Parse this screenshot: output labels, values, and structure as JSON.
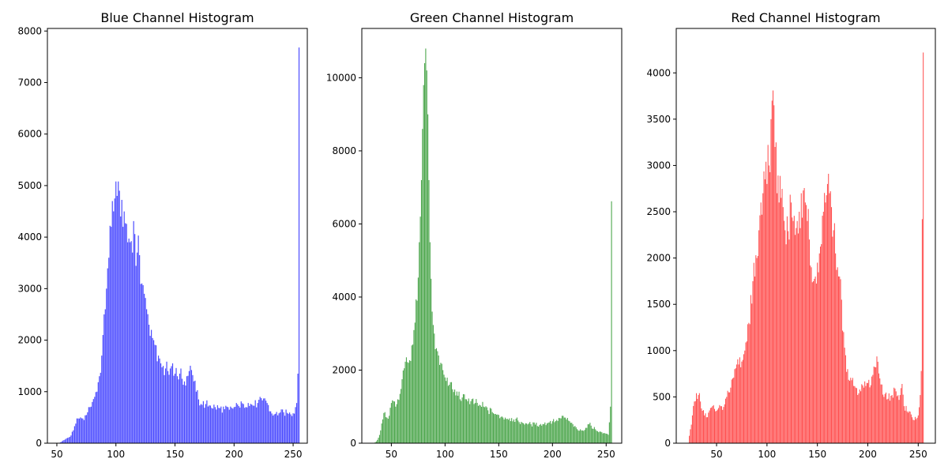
{
  "chart_data": [
    {
      "type": "bar",
      "title": "Blue Channel Histogram",
      "xlabel": "",
      "ylabel": "",
      "color": "#0000ff",
      "opacity": 0.7,
      "xlim": [
        42,
        262
      ],
      "ylim": [
        0,
        8050
      ],
      "x_ticks": [
        50,
        100,
        150,
        200,
        250
      ],
      "y_ticks": [
        0,
        1000,
        2000,
        3000,
        4000,
        5000,
        6000,
        7000,
        8000
      ],
      "grid": false,
      "key_points": [
        [
          52,
          0
        ],
        [
          54,
          30
        ],
        [
          56,
          60
        ],
        [
          58,
          90
        ],
        [
          60,
          110
        ],
        [
          62,
          150
        ],
        [
          64,
          250
        ],
        [
          66,
          380
        ],
        [
          68,
          480
        ],
        [
          70,
          500
        ],
        [
          72,
          480
        ],
        [
          74,
          540
        ],
        [
          76,
          600
        ],
        [
          78,
          700
        ],
        [
          80,
          800
        ],
        [
          82,
          900
        ],
        [
          84,
          1000
        ],
        [
          86,
          1300
        ],
        [
          88,
          1700
        ],
        [
          89,
          2100
        ],
        [
          90,
          2500
        ],
        [
          92,
          3000
        ],
        [
          94,
          3600
        ],
        [
          96,
          4200
        ],
        [
          97,
          4700
        ],
        [
          98,
          4500
        ],
        [
          99,
          4750
        ],
        [
          100,
          5080
        ],
        [
          101,
          4800
        ],
        [
          102,
          5080
        ],
        [
          103,
          4900
        ],
        [
          104,
          4400
        ],
        [
          106,
          4200
        ],
        [
          108,
          4270
        ],
        [
          110,
          3900
        ],
        [
          112,
          3900
        ],
        [
          114,
          3700
        ],
        [
          116,
          4060
        ],
        [
          118,
          3700
        ],
        [
          120,
          3650
        ],
        [
          122,
          3100
        ],
        [
          124,
          2900
        ],
        [
          126,
          2600
        ],
        [
          128,
          2300
        ],
        [
          130,
          2200
        ],
        [
          132,
          2000
        ],
        [
          134,
          1900
        ],
        [
          136,
          1700
        ],
        [
          138,
          1550
        ],
        [
          140,
          1500
        ],
        [
          142,
          1450
        ],
        [
          144,
          1400
        ],
        [
          146,
          1450
        ],
        [
          148,
          1550
        ],
        [
          150,
          1350
        ],
        [
          152,
          1300
        ],
        [
          154,
          1350
        ],
        [
          156,
          1250
        ],
        [
          158,
          1200
        ],
        [
          160,
          1300
        ],
        [
          162,
          1400
        ],
        [
          164,
          1420
        ],
        [
          166,
          1200
        ],
        [
          168,
          1000
        ],
        [
          170,
          850
        ],
        [
          172,
          760
        ],
        [
          176,
          760
        ],
        [
          180,
          730
        ],
        [
          184,
          700
        ],
        [
          188,
          680
        ],
        [
          192,
          660
        ],
        [
          196,
          650
        ],
        [
          200,
          700
        ],
        [
          204,
          720
        ],
        [
          208,
          760
        ],
        [
          212,
          780
        ],
        [
          216,
          730
        ],
        [
          220,
          780
        ],
        [
          224,
          830
        ],
        [
          226,
          870
        ],
        [
          228,
          780
        ],
        [
          230,
          620
        ],
        [
          234,
          560
        ],
        [
          238,
          580
        ],
        [
          242,
          600
        ],
        [
          246,
          570
        ],
        [
          248,
          560
        ],
        [
          250,
          580
        ],
        [
          252,
          700
        ],
        [
          253,
          780
        ],
        [
          254,
          1350
        ],
        [
          255,
          7680
        ]
      ]
    },
    {
      "type": "bar",
      "title": "Green Channel Histogram",
      "xlabel": "",
      "ylabel": "",
      "color": "#008000",
      "opacity": 0.7,
      "xlim": [
        22.5,
        264.5
      ],
      "ylim": [
        0,
        11350
      ],
      "x_ticks": [
        50,
        100,
        150,
        200,
        250
      ],
      "y_ticks": [
        0,
        2000,
        4000,
        6000,
        8000,
        10000
      ],
      "grid": false,
      "key_points": [
        [
          34,
          0
        ],
        [
          36,
          50
        ],
        [
          38,
          150
        ],
        [
          40,
          350
        ],
        [
          42,
          650
        ],
        [
          44,
          850
        ],
        [
          46,
          700
        ],
        [
          48,
          750
        ],
        [
          50,
          1100
        ],
        [
          52,
          1150
        ],
        [
          54,
          1000
        ],
        [
          56,
          1200
        ],
        [
          58,
          1350
        ],
        [
          60,
          1750
        ],
        [
          62,
          2050
        ],
        [
          64,
          2350
        ],
        [
          66,
          2200
        ],
        [
          68,
          2250
        ],
        [
          70,
          2700
        ],
        [
          72,
          3300
        ],
        [
          74,
          3900
        ],
        [
          76,
          5500
        ],
        [
          77,
          6200
        ],
        [
          78,
          7200
        ],
        [
          79,
          8600
        ],
        [
          80,
          9800
        ],
        [
          81,
          10400
        ],
        [
          82,
          10800
        ],
        [
          83,
          10200
        ],
        [
          84,
          9000
        ],
        [
          85,
          7200
        ],
        [
          86,
          5500
        ],
        [
          87,
          4500
        ],
        [
          88,
          3600
        ],
        [
          90,
          3000
        ],
        [
          92,
          2600
        ],
        [
          94,
          2400
        ],
        [
          96,
          2200
        ],
        [
          98,
          2000
        ],
        [
          100,
          1800
        ],
        [
          104,
          1600
        ],
        [
          108,
          1400
        ],
        [
          112,
          1300
        ],
        [
          116,
          1250
        ],
        [
          120,
          1200
        ],
        [
          124,
          1150
        ],
        [
          128,
          1100
        ],
        [
          132,
          1050
        ],
        [
          136,
          1000
        ],
        [
          140,
          900
        ],
        [
          144,
          850
        ],
        [
          148,
          780
        ],
        [
          152,
          720
        ],
        [
          156,
          700
        ],
        [
          160,
          680
        ],
        [
          164,
          650
        ],
        [
          168,
          620
        ],
        [
          172,
          560
        ],
        [
          176,
          540
        ],
        [
          180,
          520
        ],
        [
          184,
          510
        ],
        [
          188,
          500
        ],
        [
          192,
          520
        ],
        [
          196,
          560
        ],
        [
          200,
          600
        ],
        [
          204,
          640
        ],
        [
          208,
          680
        ],
        [
          212,
          700
        ],
        [
          216,
          600
        ],
        [
          220,
          450
        ],
        [
          224,
          350
        ],
        [
          228,
          350
        ],
        [
          232,
          420
        ],
        [
          234,
          520
        ],
        [
          236,
          480
        ],
        [
          240,
          380
        ],
        [
          244,
          320
        ],
        [
          248,
          280
        ],
        [
          252,
          230
        ],
        [
          254,
          1000
        ],
        [
          255,
          6620
        ]
      ]
    },
    {
      "type": "bar",
      "title": "Red Channel Histogram",
      "xlabel": "",
      "ylabel": "",
      "color": "#ff0000",
      "opacity": 0.7,
      "xlim": [
        10,
        267
      ],
      "ylim": [
        0,
        4480
      ],
      "x_ticks": [
        50,
        100,
        150,
        200,
        250
      ],
      "y_ticks": [
        0,
        500,
        1000,
        1500,
        2000,
        2500,
        3000,
        3500,
        4000
      ],
      "grid": false,
      "key_points": [
        [
          22,
          0
        ],
        [
          23,
          80
        ],
        [
          24,
          150
        ],
        [
          26,
          300
        ],
        [
          28,
          450
        ],
        [
          30,
          540
        ],
        [
          32,
          520
        ],
        [
          34,
          450
        ],
        [
          36,
          350
        ],
        [
          38,
          300
        ],
        [
          40,
          280
        ],
        [
          42,
          330
        ],
        [
          44,
          380
        ],
        [
          46,
          400
        ],
        [
          48,
          370
        ],
        [
          50,
          350
        ],
        [
          52,
          380
        ],
        [
          54,
          400
        ],
        [
          56,
          360
        ],
        [
          58,
          420
        ],
        [
          60,
          500
        ],
        [
          62,
          550
        ],
        [
          64,
          600
        ],
        [
          66,
          700
        ],
        [
          68,
          800
        ],
        [
          70,
          850
        ],
        [
          72,
          850
        ],
        [
          74,
          820
        ],
        [
          76,
          900
        ],
        [
          78,
          1000
        ],
        [
          80,
          1100
        ],
        [
          82,
          1300
        ],
        [
          84,
          1600
        ],
        [
          86,
          1750
        ],
        [
          88,
          1800
        ],
        [
          90,
          2000
        ],
        [
          92,
          2300
        ],
        [
          94,
          2600
        ],
        [
          96,
          2700
        ],
        [
          98,
          2850
        ],
        [
          100,
          2800
        ],
        [
          102,
          3000
        ],
        [
          104,
          3500
        ],
        [
          105,
          3700
        ],
        [
          106,
          3810
        ],
        [
          107,
          3650
        ],
        [
          108,
          3200
        ],
        [
          110,
          2700
        ],
        [
          112,
          2600
        ],
        [
          114,
          2650
        ],
        [
          116,
          2550
        ],
        [
          118,
          2300
        ],
        [
          120,
          2450
        ],
        [
          122,
          2200
        ],
        [
          124,
          2600
        ],
        [
          126,
          2400
        ],
        [
          128,
          2250
        ],
        [
          130,
          2400
        ],
        [
          132,
          2500
        ],
        [
          134,
          2700
        ],
        [
          136,
          2730
        ],
        [
          138,
          2600
        ],
        [
          140,
          2400
        ],
        [
          142,
          2200
        ],
        [
          144,
          1900
        ],
        [
          146,
          1750
        ],
        [
          148,
          1800
        ],
        [
          150,
          1950
        ],
        [
          152,
          2050
        ],
        [
          154,
          2150
        ],
        [
          156,
          2500
        ],
        [
          158,
          2600
        ],
        [
          160,
          2800
        ],
        [
          162,
          2700
        ],
        [
          164,
          2550
        ],
        [
          166,
          2300
        ],
        [
          168,
          2050
        ],
        [
          170,
          1900
        ],
        [
          172,
          1800
        ],
        [
          174,
          1550
        ],
        [
          176,
          1200
        ],
        [
          178,
          950
        ],
        [
          180,
          800
        ],
        [
          184,
          680
        ],
        [
          188,
          600
        ],
        [
          192,
          580
        ],
        [
          196,
          600
        ],
        [
          200,
          650
        ],
        [
          204,
          720
        ],
        [
          208,
          820
        ],
        [
          210,
          880
        ],
        [
          212,
          700
        ],
        [
          216,
          500
        ],
        [
          220,
          480
        ],
        [
          224,
          520
        ],
        [
          228,
          560
        ],
        [
          232,
          520
        ],
        [
          234,
          640
        ],
        [
          236,
          400
        ],
        [
          240,
          330
        ],
        [
          244,
          280
        ],
        [
          248,
          260
        ],
        [
          250,
          300
        ],
        [
          252,
          520
        ],
        [
          253,
          780
        ],
        [
          254,
          2420
        ],
        [
          255,
          4220
        ]
      ]
    }
  ]
}
